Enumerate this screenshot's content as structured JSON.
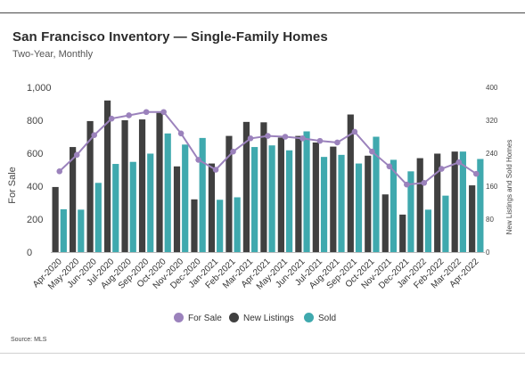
{
  "chart_data": {
    "type": "bar",
    "title": "San Francisco Inventory — Single-Family Homes",
    "subtitle": "Two-Year, Monthly",
    "source": "Source: MLS",
    "ylabel": "For Sale",
    "y2label": "New Listings and Sold Homes",
    "ylim": [
      0,
      1000
    ],
    "y2lim": [
      0,
      400
    ],
    "yticks": [
      "0",
      "200",
      "400",
      "600",
      "800",
      "1,000"
    ],
    "y2ticks": [
      "0",
      "80",
      "160",
      "240",
      "320",
      "400"
    ],
    "categories": [
      "Apr-2020",
      "May-2020",
      "Jun-2020",
      "Jul-2020",
      "Aug-2020",
      "Sep-2020",
      "Oct-2020",
      "Nov-2020",
      "Dec-2020",
      "Jan-2021",
      "Feb-2021",
      "Mar-2021",
      "Apr-2021",
      "May-2021",
      "Jun-2021",
      "Jul-2021",
      "Aug-2021",
      "Sep-2021",
      "Oct-2021",
      "Nov-2021",
      "Dec-2021",
      "Jan-2022",
      "Feb-2022",
      "Mar-2022",
      "Apr-2022"
    ],
    "series": [
      {
        "name": "For Sale",
        "type": "line",
        "axis": "left",
        "color": "#9b82bc",
        "values": [
          490,
          590,
          710,
          810,
          830,
          850,
          850,
          720,
          560,
          500,
          610,
          690,
          705,
          700,
          690,
          675,
          665,
          730,
          610,
          520,
          410,
          420,
          505,
          545,
          475
        ]
      },
      {
        "name": "New Listings",
        "type": "bar",
        "axis": "right",
        "color": "#404040",
        "values": [
          158,
          255,
          318,
          368,
          320,
          322,
          338,
          208,
          128,
          215,
          282,
          316,
          315,
          278,
          282,
          266,
          256,
          334,
          234,
          140,
          91,
          228,
          239,
          244,
          162
        ]
      },
      {
        "name": "Sold",
        "type": "bar",
        "axis": "right",
        "color": "#3fa9ae",
        "values": [
          104,
          103,
          168,
          214,
          219,
          239,
          288,
          261,
          277,
          127,
          133,
          255,
          259,
          247,
          293,
          231,
          236,
          215,
          280,
          224,
          196,
          103,
          137,
          244,
          226
        ]
      }
    ],
    "legend_position": "bottom",
    "grid": false
  }
}
